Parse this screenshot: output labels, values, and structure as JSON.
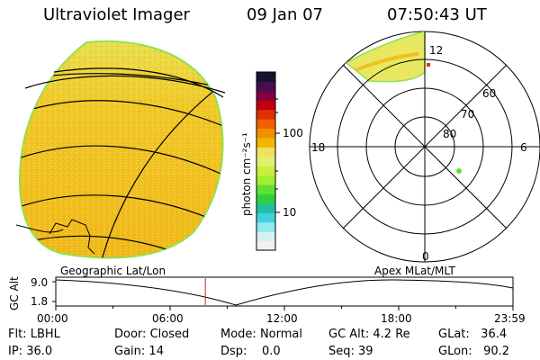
{
  "header": {
    "title": "Ultraviolet Imager",
    "date": "09 Jan 07",
    "time": "07:50:43 UT"
  },
  "colorbar": {
    "unit_label": "photon cm⁻²s⁻¹",
    "ticks": [
      "100",
      "10"
    ],
    "colors": [
      "#1a1030",
      "#401050",
      "#800040",
      "#c00010",
      "#e03000",
      "#f06000",
      "#f09000",
      "#f0b800",
      "#f0e060",
      "#e0f070",
      "#c8f040",
      "#a0f030",
      "#60e030",
      "#30d040",
      "#20c0a0",
      "#40d0e0",
      "#90e8f0",
      "#d8f0f0",
      "#f0f0f0"
    ]
  },
  "map": {
    "caption": "Geographic Lat/Lon",
    "disk_color": "#f0c020",
    "edge_color": "#90e050"
  },
  "polar": {
    "caption": "Apex MLat/MLT",
    "mlt_labels": [
      "12",
      "18",
      "6",
      "0"
    ],
    "lat_labels": [
      "60",
      "70",
      "80"
    ],
    "aurora_color": "#e8e860"
  },
  "gc_alt_plot": {
    "ylabel": "GC Alt",
    "ytick_top": "9.0",
    "ytick_bottom": "1.8",
    "xticks": [
      "00:00",
      "06:00",
      "12:00",
      "18:00",
      "23:59"
    ],
    "marker_color": "#d02020",
    "marker_time_hours": 7.85
  },
  "info": {
    "flt_label": "Flt:",
    "flt": "LBHL",
    "ip_label": "IP:",
    "ip": "36.0",
    "door_label": "Door:",
    "door": "Closed",
    "gain_label": "Gain:",
    "gain": "14",
    "mode_label": "Mode:",
    "mode": "Normal",
    "dsp_label": "Dsp:",
    "dsp": "0.0",
    "gcalt_label": "GC Alt:",
    "gcalt": "4.2 Re",
    "seq_label": "Seq:",
    "seq": "39",
    "glat_label": "GLat:",
    "glat": "36.4",
    "glon_label": "GLon:",
    "glon": "90.2"
  }
}
